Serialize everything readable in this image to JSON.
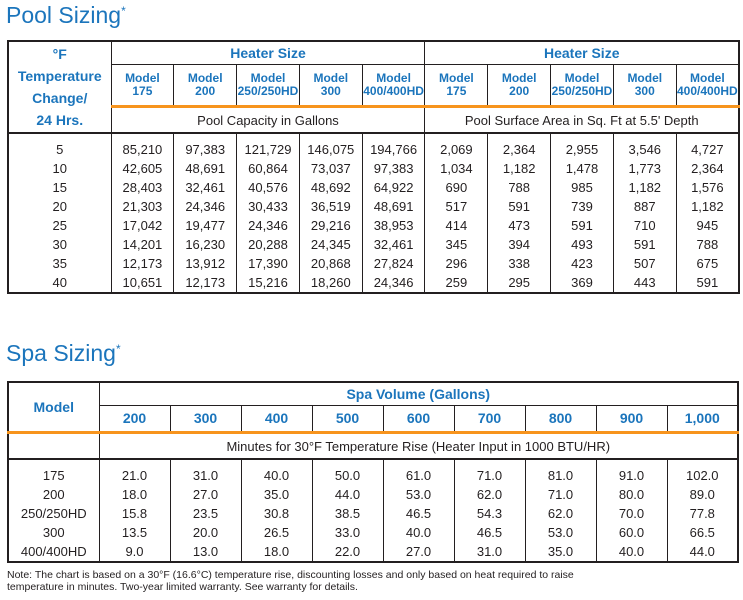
{
  "pool": {
    "title": "Pool Sizing",
    "title_mark": "*",
    "temp_header": [
      "°F",
      "Temperature",
      "Change/",
      "24 Hrs."
    ],
    "group": "Heater Size",
    "model_label": "Model",
    "models": [
      "175",
      "200",
      "250/250HD",
      "300",
      "400/400HD"
    ],
    "subheaders": [
      "Pool Capacity in Gallons",
      "Pool Surface Area in Sq. Ft at 5.5' Depth"
    ],
    "rows": [
      [
        "5",
        "85,210",
        "97,383",
        "121,729",
        "146,075",
        "194,766",
        "2,069",
        "2,364",
        "2,955",
        "3,546",
        "4,727"
      ],
      [
        "10",
        "42,605",
        "48,691",
        "60,864",
        "73,037",
        "97,383",
        "1,034",
        "1,182",
        "1,478",
        "1,773",
        "2,364"
      ],
      [
        "15",
        "28,403",
        "32,461",
        "40,576",
        "48,692",
        "64,922",
        "690",
        "788",
        "985",
        "1,182",
        "1,576"
      ],
      [
        "20",
        "21,303",
        "24,346",
        "30,433",
        "36,519",
        "48,691",
        "517",
        "591",
        "739",
        "887",
        "1,182"
      ],
      [
        "25",
        "17,042",
        "19,477",
        "24,346",
        "29,216",
        "38,953",
        "414",
        "473",
        "591",
        "710",
        "945"
      ],
      [
        "30",
        "14,201",
        "16,230",
        "20,288",
        "24,345",
        "32,461",
        "345",
        "394",
        "493",
        "591",
        "788"
      ],
      [
        "35",
        "12,173",
        "13,912",
        "17,390",
        "20,868",
        "27,824",
        "296",
        "338",
        "423",
        "507",
        "675"
      ],
      [
        "40",
        "10,651",
        "12,173",
        "15,216",
        "18,260",
        "24,346",
        "259",
        "295",
        "369",
        "443",
        "591"
      ]
    ]
  },
  "spa": {
    "title": "Spa Sizing",
    "title_mark": "*",
    "model_header": "Model",
    "group": "Spa Volume (Gallons)",
    "volumes": [
      "200",
      "300",
      "400",
      "500",
      "600",
      "700",
      "800",
      "900",
      "1,000"
    ],
    "subheader": "Minutes for 30°F Temperature Rise (Heater Input in 1000 BTU/HR)",
    "rows": [
      [
        "175",
        "21.0",
        "31.0",
        "40.0",
        "50.0",
        "61.0",
        "71.0",
        "81.0",
        "91.0",
        "102.0"
      ],
      [
        "200",
        "18.0",
        "27.0",
        "35.0",
        "44.0",
        "53.0",
        "62.0",
        "71.0",
        "80.0",
        "89.0"
      ],
      [
        "250/250HD",
        "15.8",
        "23.5",
        "30.8",
        "38.5",
        "46.5",
        "54.3",
        "62.0",
        "70.0",
        "77.8"
      ],
      [
        "300",
        "13.5",
        "20.0",
        "26.5",
        "33.0",
        "40.0",
        "46.5",
        "53.0",
        "60.0",
        "66.5"
      ],
      [
        "400/400HD",
        "9.0",
        "13.0",
        "18.0",
        "22.0",
        "27.0",
        "31.0",
        "35.0",
        "40.0",
        "44.0"
      ]
    ]
  },
  "note": "Note: The chart is based on a 30°F (16.6°C) temperature rise, discounting losses and only based on heat required to raise temperature in minutes. Two-year limited warranty. See warranty for details."
}
